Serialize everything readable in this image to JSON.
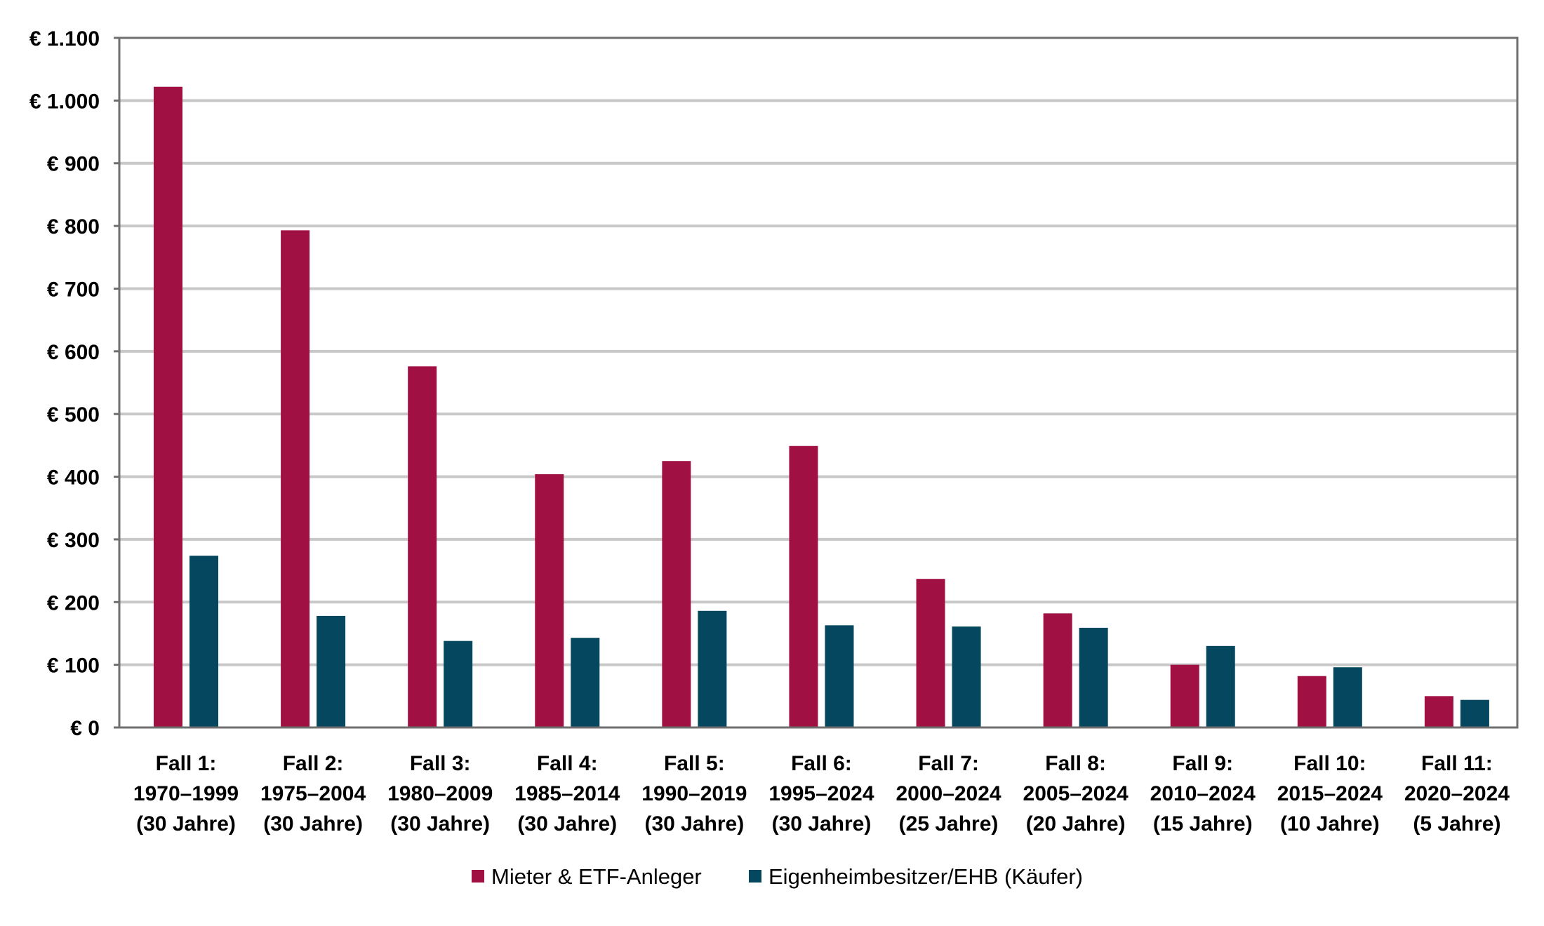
{
  "chart_data": {
    "type": "bar",
    "title": "",
    "xlabel": "",
    "ylabel": "",
    "ylim": [
      0,
      1100
    ],
    "ytick_values": [
      0,
      100,
      200,
      300,
      400,
      500,
      600,
      700,
      800,
      900,
      1000,
      1100
    ],
    "ytick_labels": [
      "€ 0",
      "€ 100",
      "€ 200",
      "€ 300",
      "€ 400",
      "€ 500",
      "€ 600",
      "€ 700",
      "€ 800",
      "€ 900",
      "€ 1.000",
      "€ 1.100"
    ],
    "grid": true,
    "legend_position": "bottom",
    "categories": [
      [
        "Fall 1:",
        "1970–1999",
        "(30 Jahre)"
      ],
      [
        "Fall 2:",
        "1975–2004",
        "(30 Jahre)"
      ],
      [
        "Fall 3:",
        "1980–2009",
        "(30 Jahre)"
      ],
      [
        "Fall 4:",
        "1985–2014",
        "(30 Jahre)"
      ],
      [
        "Fall 5:",
        "1990–2019",
        "(30 Jahre)"
      ],
      [
        "Fall 6:",
        "1995–2024",
        "(30 Jahre)"
      ],
      [
        "Fall 7:",
        "2000–2024",
        "(25 Jahre)"
      ],
      [
        "Fall 8:",
        "2005–2024",
        "(20 Jahre)"
      ],
      [
        "Fall 9:",
        "2010–2024",
        "(15 Jahre)"
      ],
      [
        "Fall 10:",
        "2015–2024",
        "(10 Jahre)"
      ],
      [
        "Fall 11:",
        "2020–2024",
        "(5 Jahre)"
      ]
    ],
    "series": [
      {
        "name": "Mieter & ETF-Anleger",
        "color": "#A01043",
        "values": [
          1022,
          793,
          576,
          404,
          425,
          449,
          237,
          182,
          100,
          82,
          50
        ]
      },
      {
        "name": "Eigenheimbesitzer/EHB (Käufer)",
        "color": "#04475F",
        "values": [
          274,
          178,
          138,
          143,
          186,
          163,
          161,
          159,
          130,
          96,
          44
        ]
      }
    ],
    "colors": {
      "grid": "#C8C8C8",
      "frame": "#6F6F6F"
    }
  }
}
